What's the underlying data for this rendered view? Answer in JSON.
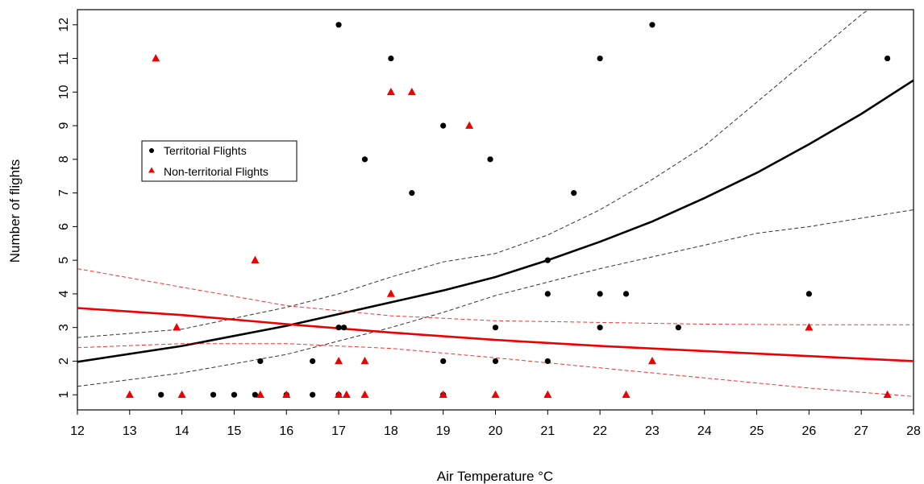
{
  "chart_data": {
    "type": "scatter",
    "title": "",
    "xlabel": "Air Temperature °C",
    "ylabel": "Number of flights",
    "xlim": [
      12,
      28
    ],
    "ylim": [
      0.55,
      12.45
    ],
    "x_ticks": [
      12,
      13,
      14,
      15,
      16,
      17,
      18,
      19,
      20,
      21,
      22,
      23,
      24,
      25,
      26,
      27,
      28
    ],
    "y_ticks": [
      1,
      2,
      3,
      4,
      5,
      6,
      7,
      8,
      9,
      10,
      11,
      12
    ],
    "grid": false,
    "legend": {
      "placement": "upper-left",
      "entries": [
        "Territorial Flights",
        "Non-territorial Flights"
      ]
    },
    "series": [
      {
        "name": "Territorial Flights",
        "color": "#000000",
        "marker": "circle",
        "points": [
          [
            13.6,
            1
          ],
          [
            14.6,
            1
          ],
          [
            15.0,
            1
          ],
          [
            15.4,
            1
          ],
          [
            16.0,
            1
          ],
          [
            16.5,
            1
          ],
          [
            17.0,
            1
          ],
          [
            19.0,
            1
          ],
          [
            15.5,
            2
          ],
          [
            16.5,
            2
          ],
          [
            19.0,
            2
          ],
          [
            20.0,
            2
          ],
          [
            21.0,
            2
          ],
          [
            17.0,
            3
          ],
          [
            17.1,
            3
          ],
          [
            20.0,
            3
          ],
          [
            22.0,
            3
          ],
          [
            23.5,
            3
          ],
          [
            21.0,
            4
          ],
          [
            22.0,
            4
          ],
          [
            22.5,
            4
          ],
          [
            26.0,
            4
          ],
          [
            21.0,
            5
          ],
          [
            18.4,
            7
          ],
          [
            21.5,
            7
          ],
          [
            17.5,
            8
          ],
          [
            19.9,
            8
          ],
          [
            19.0,
            9
          ],
          [
            18.0,
            11
          ],
          [
            22.0,
            11
          ],
          [
            27.5,
            11
          ],
          [
            17.0,
            12
          ],
          [
            23.0,
            12
          ]
        ]
      },
      {
        "name": "Non-territorial Flights",
        "color": "#ee0000",
        "marker": "triangle",
        "points": [
          [
            13.0,
            1
          ],
          [
            14.0,
            1
          ],
          [
            15.5,
            1
          ],
          [
            16.0,
            1
          ],
          [
            17.0,
            1
          ],
          [
            17.15,
            1
          ],
          [
            17.5,
            1
          ],
          [
            19.0,
            1
          ],
          [
            20.0,
            1
          ],
          [
            21.0,
            1
          ],
          [
            22.5,
            1
          ],
          [
            27.5,
            1
          ],
          [
            17.0,
            2
          ],
          [
            17.5,
            2
          ],
          [
            23.0,
            2
          ],
          [
            13.9,
            3
          ],
          [
            26.0,
            3
          ],
          [
            18.0,
            4
          ],
          [
            15.4,
            5
          ],
          [
            19.5,
            9
          ],
          [
            18.0,
            10
          ],
          [
            18.4,
            10
          ],
          [
            13.5,
            11
          ]
        ]
      }
    ],
    "fits": [
      {
        "series": "Territorial Flights",
        "color": "#000000",
        "x": [
          12,
          14,
          16,
          17,
          18,
          19,
          20,
          21,
          22,
          23,
          24,
          25,
          26,
          27,
          28
        ],
        "fit": [
          1.98,
          2.45,
          3.05,
          3.4,
          3.75,
          4.1,
          4.5,
          5.0,
          5.55,
          6.15,
          6.85,
          7.6,
          8.45,
          9.35,
          10.35
        ],
        "lower": [
          1.25,
          1.65,
          2.2,
          2.6,
          3.0,
          3.45,
          3.95,
          4.35,
          4.75,
          5.1,
          5.45,
          5.8,
          6.0,
          6.25,
          6.5
        ],
        "upper": [
          2.7,
          2.95,
          3.6,
          4.0,
          4.5,
          4.95,
          5.2,
          5.75,
          6.5,
          7.4,
          8.4,
          9.7,
          11.0,
          12.3,
          13.4
        ]
      },
      {
        "series": "Non-territorial Flights",
        "color": "#ee0000",
        "x": [
          12,
          14,
          16,
          18,
          20,
          22,
          24,
          26,
          28
        ],
        "fit": [
          3.58,
          3.37,
          3.1,
          2.85,
          2.63,
          2.45,
          2.3,
          2.15,
          2.0
        ],
        "lower": [
          2.4,
          2.52,
          2.52,
          2.38,
          2.1,
          1.8,
          1.5,
          1.2,
          0.95
        ],
        "upper": [
          4.75,
          4.2,
          3.65,
          3.35,
          3.2,
          3.15,
          3.1,
          3.08,
          3.08
        ]
      }
    ]
  }
}
